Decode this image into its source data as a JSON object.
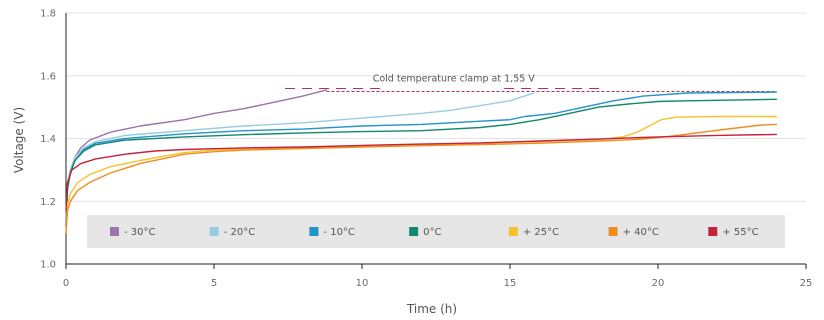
{
  "chart_data": {
    "type": "line",
    "xlabel": "Time (h)",
    "ylabel": "Voltage (V)",
    "xlim": [
      0,
      25
    ],
    "ylim": [
      1.0,
      1.8
    ],
    "xticks": [
      0,
      5,
      10,
      15,
      20,
      25
    ],
    "yticks": [
      1.0,
      1.2,
      1.4,
      1.6,
      1.8
    ],
    "x_tick_labels": [
      "0",
      "5",
      "10",
      "15",
      "20",
      "25"
    ],
    "y_tick_labels": [
      "1.0",
      "1.2",
      "1.4",
      "1.6",
      "1.8"
    ],
    "grid": "horizontal",
    "legend_position": "bottom-center",
    "series": [
      {
        "name": "- 30°C",
        "color": "#9b73ad",
        "points": [
          [
            0,
            1.12
          ],
          [
            0.05,
            1.25
          ],
          [
            0.15,
            1.3
          ],
          [
            0.3,
            1.34
          ],
          [
            0.5,
            1.37
          ],
          [
            0.8,
            1.395
          ],
          [
            1.5,
            1.42
          ],
          [
            2.5,
            1.44
          ],
          [
            4,
            1.46
          ],
          [
            5,
            1.48
          ],
          [
            6,
            1.495
          ],
          [
            7,
            1.515
          ],
          [
            8,
            1.535
          ],
          [
            8.8,
            1.555
          ]
        ]
      },
      {
        "name": "- 20°C",
        "color": "#94cde0",
        "points": [
          [
            0,
            1.12
          ],
          [
            0.05,
            1.24
          ],
          [
            0.15,
            1.3
          ],
          [
            0.3,
            1.34
          ],
          [
            0.6,
            1.37
          ],
          [
            1,
            1.39
          ],
          [
            2,
            1.41
          ],
          [
            4,
            1.425
          ],
          [
            6,
            1.44
          ],
          [
            8,
            1.45
          ],
          [
            10,
            1.465
          ],
          [
            12,
            1.48
          ],
          [
            13,
            1.49
          ],
          [
            14,
            1.505
          ],
          [
            15,
            1.52
          ],
          [
            15.8,
            1.545
          ]
        ]
      },
      {
        "name": "- 10°C",
        "color": "#2492cc",
        "points": [
          [
            0,
            1.12
          ],
          [
            0.05,
            1.24
          ],
          [
            0.15,
            1.29
          ],
          [
            0.3,
            1.33
          ],
          [
            0.6,
            1.365
          ],
          [
            1,
            1.385
          ],
          [
            2,
            1.4
          ],
          [
            4,
            1.415
          ],
          [
            6,
            1.425
          ],
          [
            8,
            1.43
          ],
          [
            10,
            1.44
          ],
          [
            12,
            1.445
          ],
          [
            14,
            1.455
          ],
          [
            15,
            1.46
          ],
          [
            15.5,
            1.47
          ],
          [
            16.5,
            1.48
          ],
          [
            17.5,
            1.5
          ],
          [
            18.5,
            1.52
          ],
          [
            19.5,
            1.535
          ],
          [
            21,
            1.545
          ],
          [
            24,
            1.548
          ]
        ]
      },
      {
        "name": "0°C",
        "color": "#12886c",
        "points": [
          [
            0,
            1.12
          ],
          [
            0.05,
            1.24
          ],
          [
            0.15,
            1.29
          ],
          [
            0.3,
            1.33
          ],
          [
            0.6,
            1.36
          ],
          [
            1,
            1.38
          ],
          [
            2,
            1.395
          ],
          [
            4,
            1.405
          ],
          [
            6,
            1.412
          ],
          [
            8,
            1.418
          ],
          [
            10,
            1.422
          ],
          [
            12,
            1.425
          ],
          [
            14,
            1.435
          ],
          [
            15,
            1.445
          ],
          [
            16,
            1.46
          ],
          [
            17,
            1.48
          ],
          [
            18,
            1.5
          ],
          [
            19,
            1.51
          ],
          [
            20,
            1.518
          ],
          [
            21,
            1.52
          ],
          [
            24,
            1.525
          ]
        ]
      },
      {
        "name": "+ 25°C",
        "color": "#f5c22b",
        "points": [
          [
            0,
            1.1
          ],
          [
            0.05,
            1.19
          ],
          [
            0.15,
            1.225
          ],
          [
            0.4,
            1.26
          ],
          [
            0.8,
            1.285
          ],
          [
            1.5,
            1.31
          ],
          [
            2.5,
            1.33
          ],
          [
            4,
            1.355
          ],
          [
            5,
            1.363
          ],
          [
            6,
            1.367
          ],
          [
            8,
            1.372
          ],
          [
            10,
            1.377
          ],
          [
            12,
            1.381
          ],
          [
            14,
            1.385
          ],
          [
            16,
            1.39
          ],
          [
            18,
            1.397
          ],
          [
            18.8,
            1.405
          ],
          [
            19.3,
            1.42
          ],
          [
            19.7,
            1.44
          ],
          [
            20.1,
            1.46
          ],
          [
            20.6,
            1.468
          ],
          [
            22,
            1.47
          ],
          [
            24,
            1.47
          ]
        ]
      },
      {
        "name": "+ 40°C",
        "color": "#f08c1c",
        "points": [
          [
            0,
            1.1
          ],
          [
            0.05,
            1.17
          ],
          [
            0.15,
            1.2
          ],
          [
            0.4,
            1.235
          ],
          [
            0.8,
            1.26
          ],
          [
            1.5,
            1.29
          ],
          [
            2.5,
            1.32
          ],
          [
            4,
            1.35
          ],
          [
            5,
            1.358
          ],
          [
            6,
            1.363
          ],
          [
            8,
            1.368
          ],
          [
            10,
            1.373
          ],
          [
            12,
            1.377
          ],
          [
            14,
            1.381
          ],
          [
            16,
            1.385
          ],
          [
            18,
            1.392
          ],
          [
            19.5,
            1.398
          ],
          [
            20.5,
            1.408
          ],
          [
            21.5,
            1.42
          ],
          [
            22.5,
            1.432
          ],
          [
            23.5,
            1.443
          ],
          [
            24,
            1.445
          ]
        ]
      },
      {
        "name": "+ 55°C",
        "color": "#c4233c",
        "points": [
          [
            0,
            1.17
          ],
          [
            0.05,
            1.26
          ],
          [
            0.2,
            1.3
          ],
          [
            0.5,
            1.32
          ],
          [
            1,
            1.335
          ],
          [
            2,
            1.35
          ],
          [
            3,
            1.36
          ],
          [
            4,
            1.365
          ],
          [
            6,
            1.37
          ],
          [
            8,
            1.373
          ],
          [
            10,
            1.378
          ],
          [
            12,
            1.382
          ],
          [
            14,
            1.386
          ],
          [
            16,
            1.392
          ],
          [
            18,
            1.398
          ],
          [
            20,
            1.405
          ],
          [
            22,
            1.41
          ],
          [
            24,
            1.413
          ]
        ]
      }
    ],
    "annotations": [
      {
        "text": "Cold temperature clamp at 1,55 V",
        "y": 1.55,
        "x_start": 8.8,
        "x_end": 24,
        "color": "#b52f5e"
      }
    ]
  }
}
